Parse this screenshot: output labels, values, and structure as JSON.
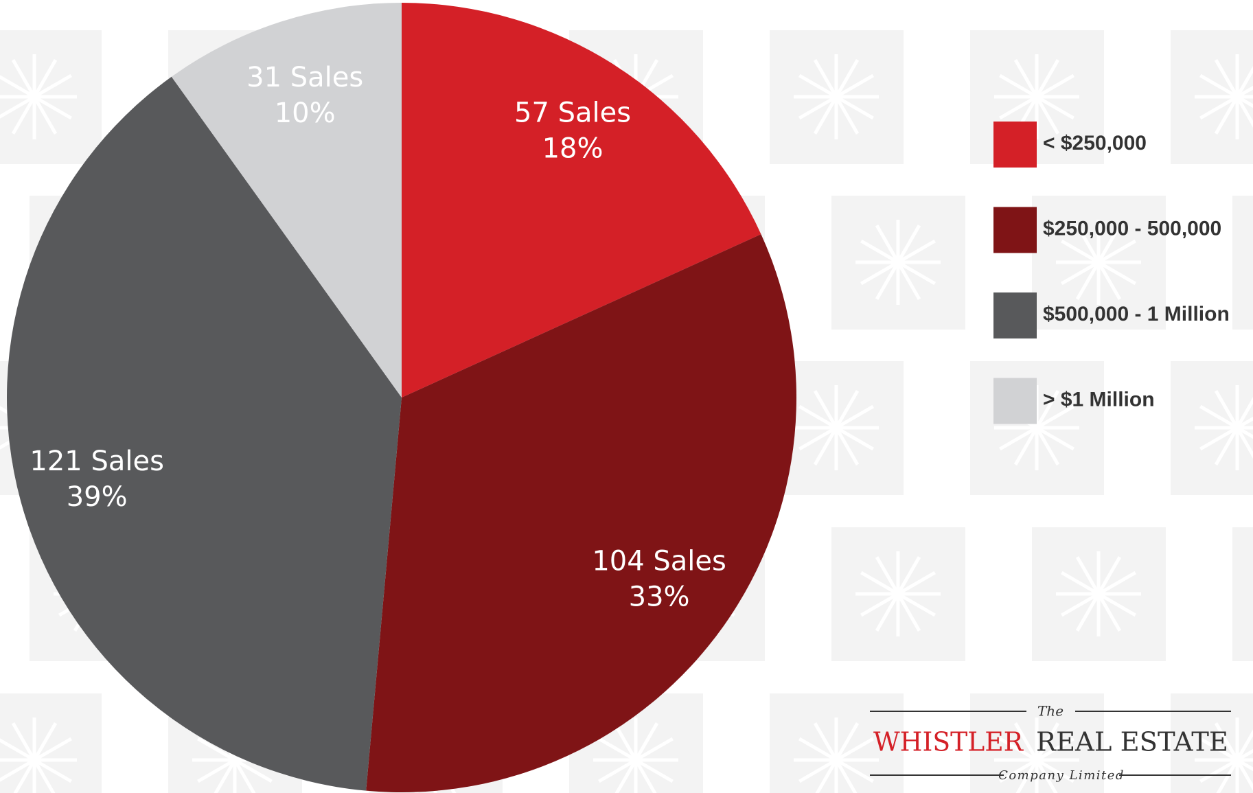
{
  "chart_data": {
    "type": "pie",
    "categories": [
      "< $250,000",
      "$250,000 - 500,000",
      "$500,000 - 1 Million",
      "> $1 Million"
    ],
    "series": [
      {
        "values": [
          57,
          104,
          121,
          31
        ],
        "value_labels": [
          "57 Sales",
          "104 Sales",
          "121 Sales",
          "31 Sales"
        ]
      }
    ],
    "percent_values": [
      18,
      33,
      39,
      10
    ],
    "percent_labels": [
      "18%",
      "33%",
      "39%",
      "10%"
    ],
    "colors": [
      "#d42027",
      "#7f1416",
      "#58595b",
      "#d1d2d4"
    ],
    "legend": "right"
  },
  "logo": {
    "prefix": "The",
    "brand": "WHISTLER",
    "name": "REAL ESTATE",
    "suffix": "Company Limited"
  }
}
